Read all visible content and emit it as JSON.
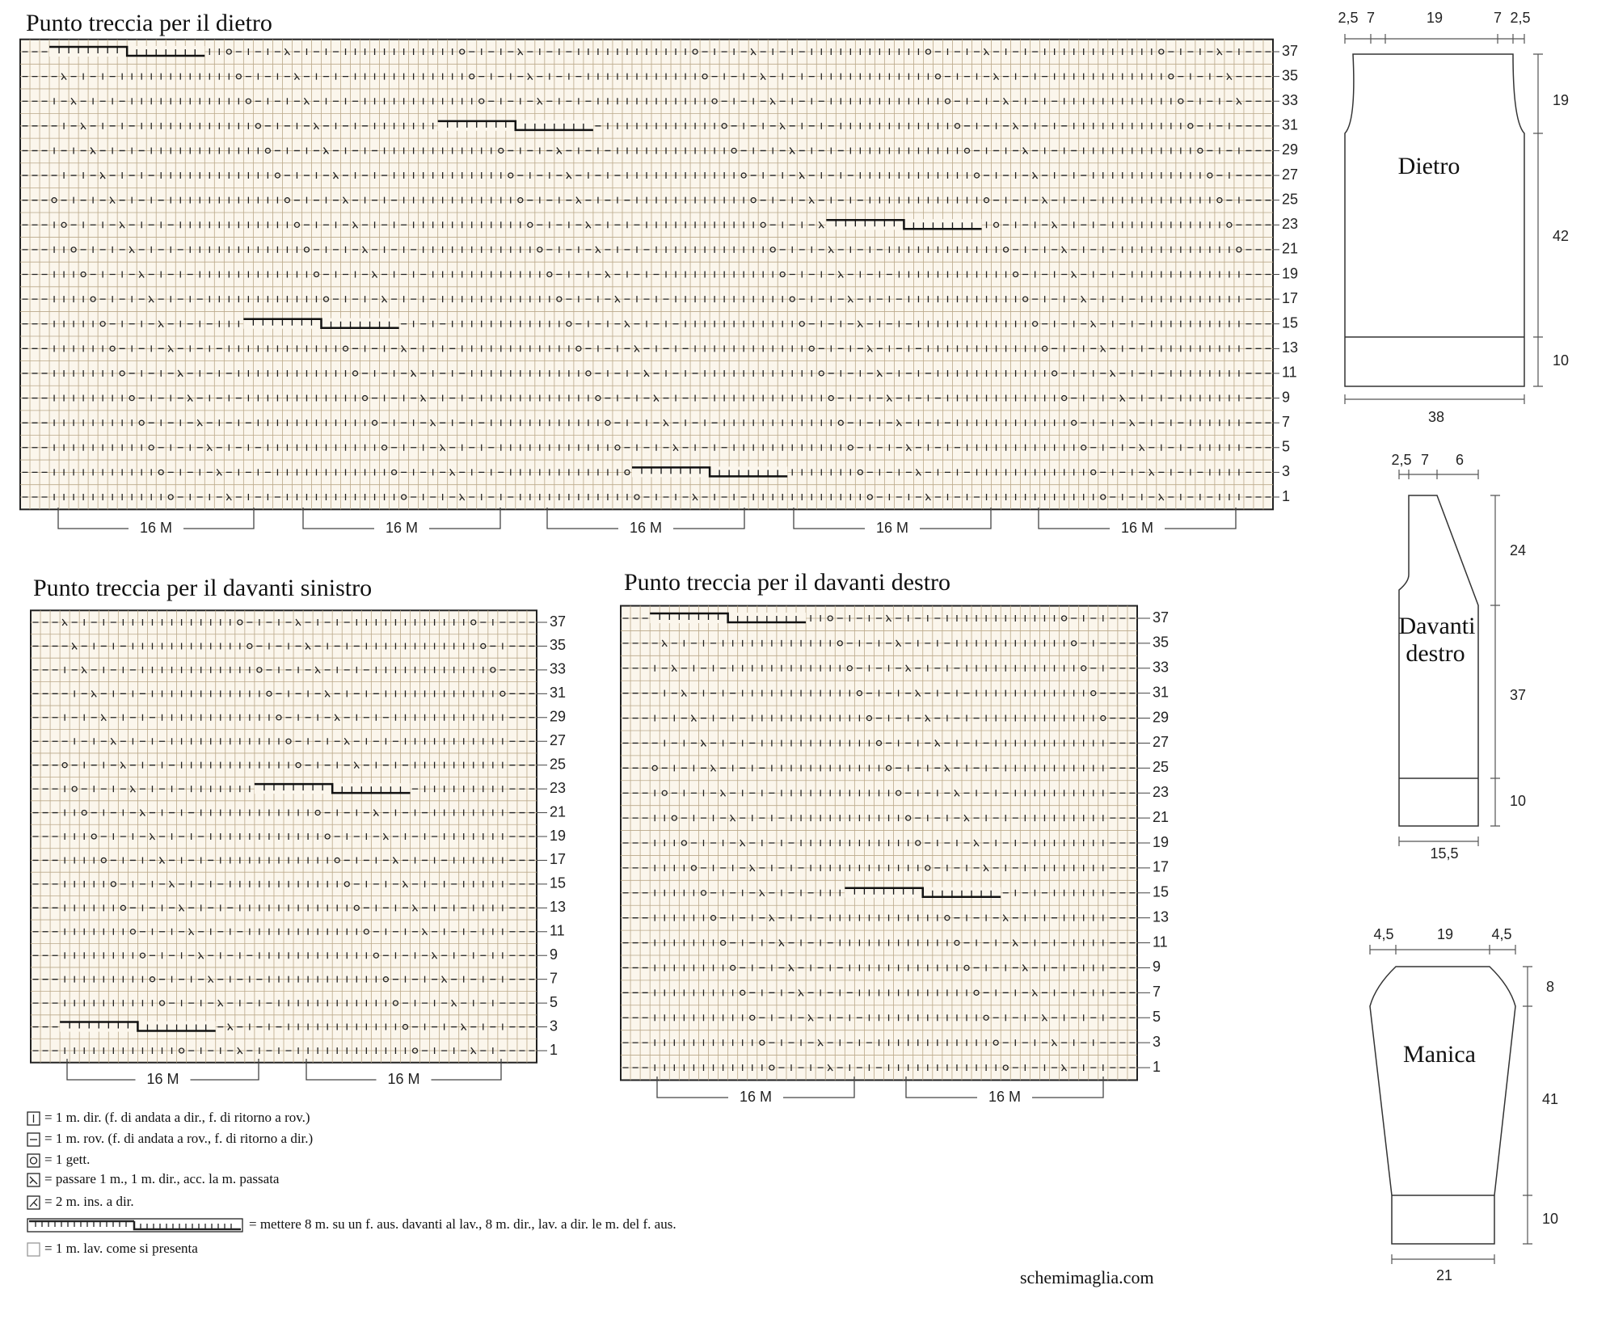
{
  "charts": [
    {
      "title": "Punto treccia per il dietro",
      "row_numbers": [
        37,
        35,
        33,
        31,
        29,
        27,
        25,
        23,
        21,
        19,
        17,
        15,
        13,
        11,
        9,
        7,
        5,
        3,
        1
      ],
      "repeat_labels": [
        "16 M",
        "16 M",
        "16 M",
        "16 M",
        "16 M"
      ]
    },
    {
      "title": "Punto treccia per il davanti sinistro",
      "row_numbers": [
        37,
        35,
        33,
        31,
        29,
        27,
        25,
        23,
        21,
        19,
        17,
        15,
        13,
        11,
        9,
        7,
        5,
        3,
        1
      ],
      "repeat_labels": [
        "16 M",
        "16 M"
      ]
    },
    {
      "title": "Punto treccia per il davanti destro",
      "row_numbers": [
        37,
        35,
        33,
        31,
        29,
        27,
        25,
        23,
        21,
        19,
        17,
        15,
        13,
        11,
        9,
        7,
        5,
        3,
        1
      ],
      "repeat_labels": [
        "16 M",
        "16 M"
      ]
    }
  ],
  "legend": [
    "= 1 m. dir. (f. di andata a dir., f. di ritorno a rov.)",
    "= 1 m. rov. (f. di andata a rov., f. di ritorno a dir.)",
    "= 1 gett.",
    "= passare 1 m., 1 m. dir., acc. la m. passata",
    "= 2 m. ins. a dir.",
    "= mettere 8 m. su un f. aus. davanti al lav., 8 m. dir., lav. a dir. le m. del f. aus.",
    "= 1 m. lav. come si presenta"
  ],
  "schematics": [
    {
      "label": [
        "Dietro"
      ],
      "top": [
        "2,5",
        "7",
        "19",
        "7",
        "2,5"
      ],
      "right": [
        "19",
        "42",
        "10"
      ],
      "bottom": "38"
    },
    {
      "label": [
        "Davanti",
        "destro"
      ],
      "top": [
        "2,5",
        "7",
        "6"
      ],
      "right": [
        "24",
        "37",
        "10"
      ],
      "bottom": "15,5"
    },
    {
      "label": [
        "Manica"
      ],
      "top": [
        "4,5",
        "19",
        "4,5"
      ],
      "right": [
        "8",
        "41",
        "10"
      ],
      "bottom": "21"
    }
  ],
  "footer": "schemimaglia.com"
}
